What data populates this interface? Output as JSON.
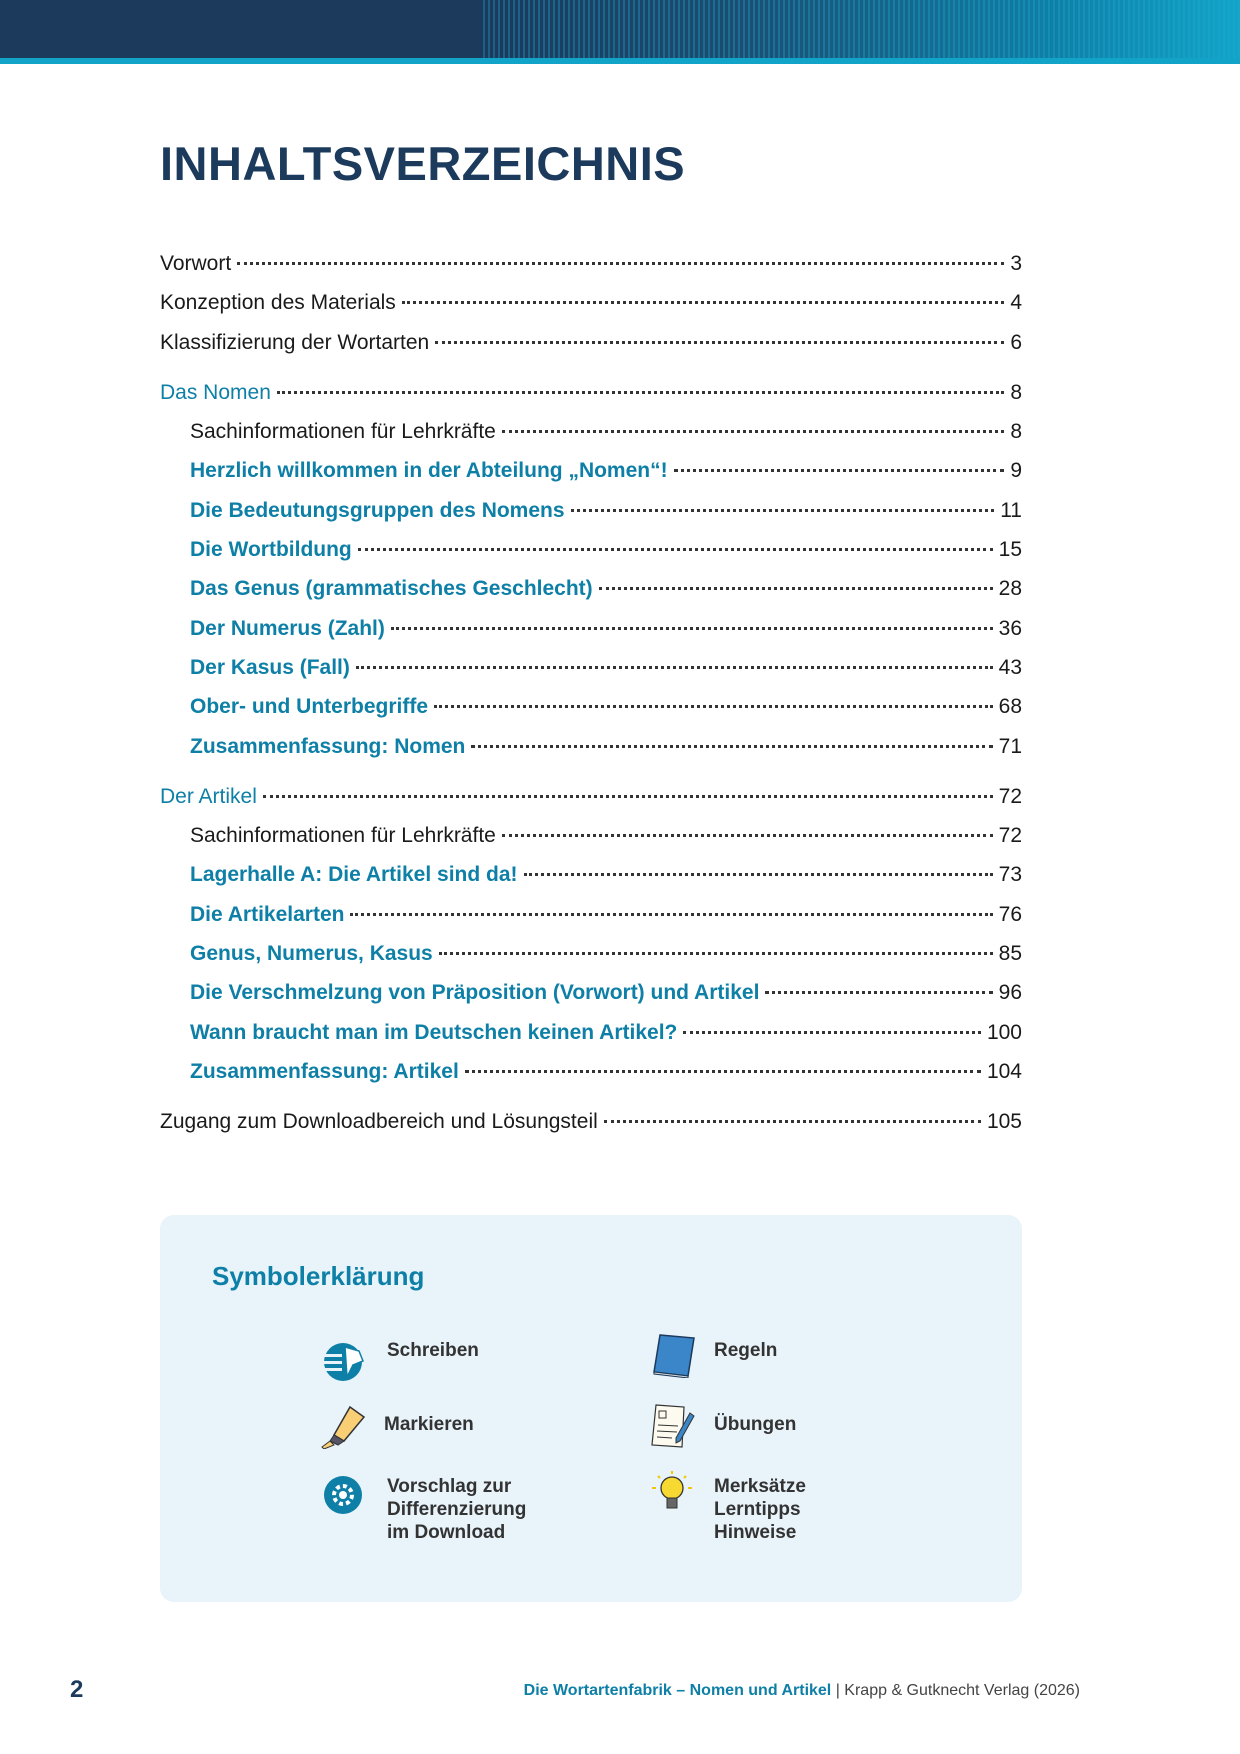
{
  "title": "INHALTSVERZEICHNIS",
  "toc": [
    {
      "label": "Vorwort",
      "page": "3"
    },
    {
      "label": "Konzeption des Materials",
      "page": "4"
    },
    {
      "label": "Klassifizierung der Wortarten",
      "page": "6"
    },
    {
      "label": "Das Nomen",
      "page": "8"
    },
    {
      "label": "Sachinformationen für Lehrkräfte",
      "page": "8"
    },
    {
      "label": "Herzlich willkommen in der Abteilung „Nomen“!",
      "page": "9"
    },
    {
      "label": "Die Bedeutungsgruppen des Nomens",
      "page": "11"
    },
    {
      "label": "Die Wortbildung",
      "page": "15"
    },
    {
      "label": "Das Genus (grammatisches Geschlecht)",
      "page": "28"
    },
    {
      "label": "Der Numerus (Zahl)",
      "page": "36"
    },
    {
      "label": "Der Kasus (Fall)",
      "page": "43"
    },
    {
      "label": "Ober- und Unterbegriffe",
      "page": "68"
    },
    {
      "label": "Zusammenfassung: Nomen",
      "page": "71"
    },
    {
      "label": "Der Artikel",
      "page": "72"
    },
    {
      "label": "Sachinformationen für Lehrkräfte",
      "page": "72"
    },
    {
      "label": "Lagerhalle A: Die Artikel sind da!",
      "page": "73"
    },
    {
      "label": "Die Artikelarten",
      "page": "76"
    },
    {
      "label": "Genus, Numerus, Kasus",
      "page": "85"
    },
    {
      "label": "Die Verschmelzung von Präposition (Vorwort) und Artikel",
      "page": "96"
    },
    {
      "label": "Wann braucht man im Deutschen keinen Artikel?",
      "page": "100"
    },
    {
      "label": "Zusammenfassung: Artikel",
      "page": "104"
    },
    {
      "label": "Zugang zum Downloadbereich und Lösungsteil",
      "page": "105"
    }
  ],
  "symbols": {
    "title": "Symbolerklärung",
    "items": [
      {
        "icon": "writing-icon",
        "label": "Schreiben"
      },
      {
        "icon": "book-icon",
        "label": "Regeln"
      },
      {
        "icon": "highlighter-icon",
        "label": "Markieren"
      },
      {
        "icon": "worksheet-pencil-icon",
        "label": "Übungen"
      },
      {
        "icon": "gear-icon",
        "label": "Vorschlag zur\nDifferenzierung\nim Download"
      },
      {
        "icon": "lightbulb-icon",
        "label": "Merksätze\nLerntipps\nHinweise"
      }
    ]
  },
  "footer": {
    "page_number": "2",
    "book_title": "Die Wortartenfabrik – Nomen und Artikel",
    "separator": " | ",
    "publisher": "Krapp & Gutknecht Verlag (2026)"
  },
  "colors": {
    "navy": "#1b3a5c",
    "accent": "#0e7fa6",
    "box_bg": "#e8f3fa"
  }
}
